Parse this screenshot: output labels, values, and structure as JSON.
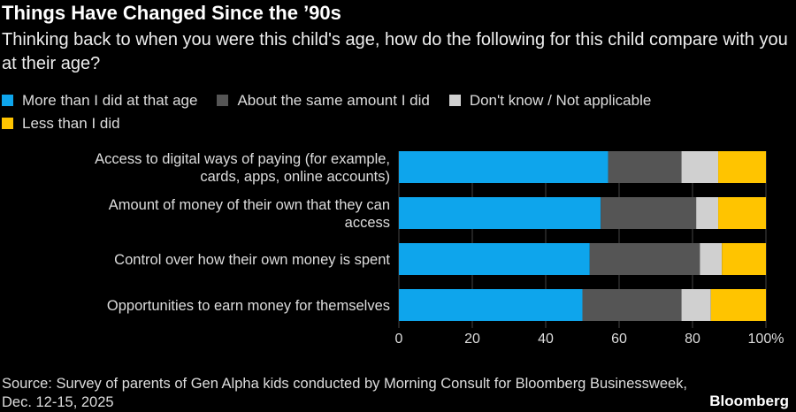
{
  "title": "Things Have Changed Since the ’90s",
  "subtitle": "Thinking back to when you were this child's age, how do the following for this child compare with you at their age?",
  "source": "Source: Survey of parents of Gen Alpha kids conducted by Morning Consult for Bloomberg Businessweek, Dec. 12-15, 2025",
  "logo": "Bloomberg",
  "chart_data": {
    "type": "bar",
    "orientation": "horizontal",
    "stacked": true,
    "categories": [
      [
        "Access to digital ways of paying (for example,",
        "cards, apps, online accounts)"
      ],
      [
        "Amount of money of their own that they can",
        "access"
      ],
      [
        "Control over how their own money is spent"
      ],
      [
        "Opportunities to earn money for themselves"
      ]
    ],
    "series": [
      {
        "name": "More than I did at that age",
        "color": "#0ea5ec",
        "values": [
          57,
          55,
          52,
          50
        ]
      },
      {
        "name": "About the same amount I did",
        "color": "#555555",
        "values": [
          20,
          26,
          30,
          27
        ]
      },
      {
        "name": "Don't know / Not applicable",
        "color": "#d0d0d0",
        "values": [
          10,
          6,
          6,
          8
        ]
      },
      {
        "name": "Less than I did",
        "color": "#ffc400",
        "values": [
          13,
          13,
          12,
          15
        ]
      }
    ],
    "xlim": [
      0,
      100
    ],
    "xticks": [
      "0",
      "20",
      "40",
      "60",
      "80",
      "100%"
    ],
    "legend": "top",
    "grid": true
  }
}
